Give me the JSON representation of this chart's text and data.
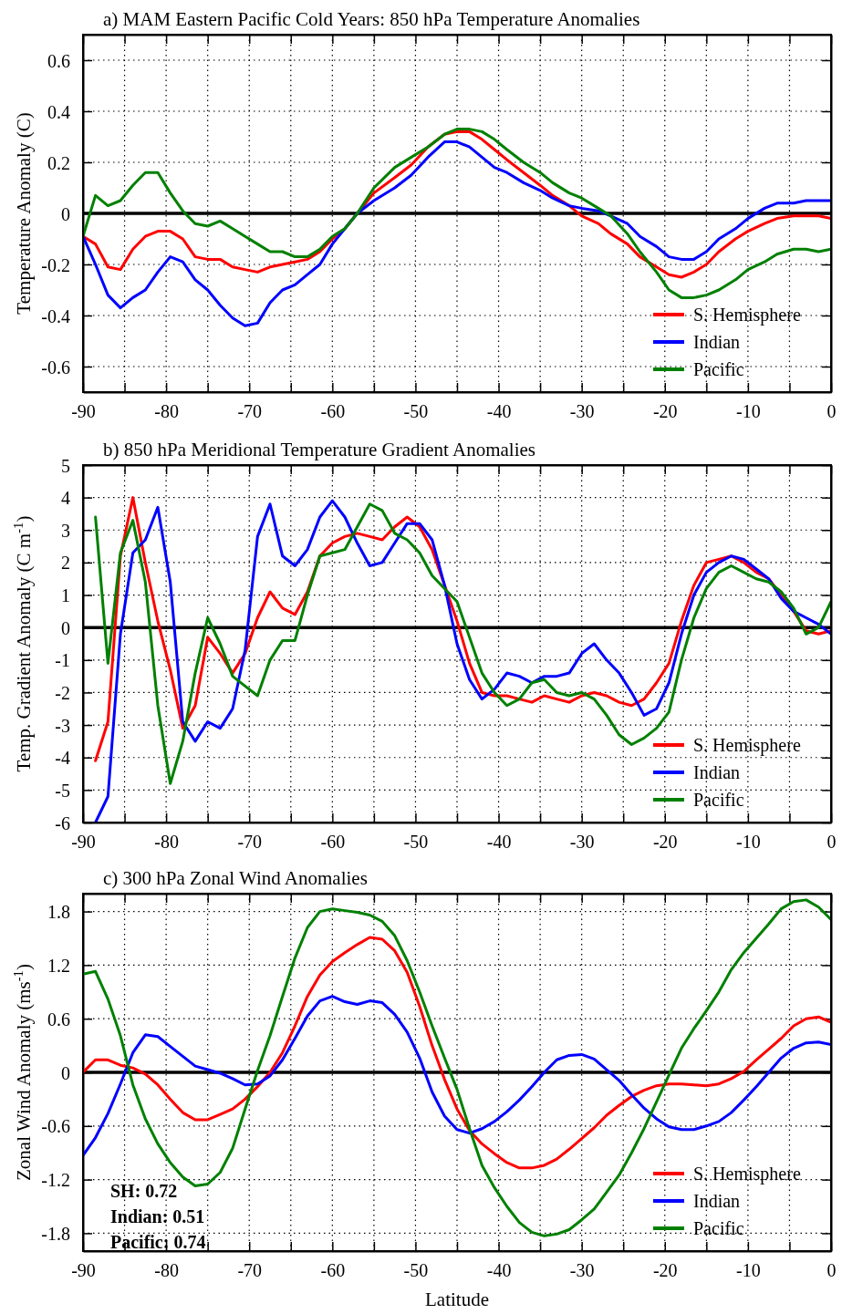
{
  "chart_data": [
    {
      "type": "line",
      "title": "a) MAM Eastern Pacific Cold Years: 850 hPa Temperature Anomalies",
      "ylabel": "Temperature Anomaly (C)",
      "x": [
        -90,
        -88.5,
        -87,
        -85.5,
        -84,
        -82.5,
        -81,
        -79.5,
        -78,
        -76.5,
        -75,
        -73.5,
        -72,
        -70.5,
        -69,
        -67.5,
        -66,
        -64.5,
        -63,
        -61.5,
        -60,
        -58.5,
        -57,
        -55,
        -52.5,
        -50.5,
        -48.5,
        -46.5,
        -45,
        -43.5,
        -42,
        -40.5,
        -39,
        -37,
        -35,
        -33.5,
        -31.5,
        -30,
        -28,
        -26.5,
        -24.5,
        -23,
        -21,
        -19.5,
        -18,
        -16.5,
        -15,
        -13.5,
        -11.5,
        -10,
        -8,
        -6.5,
        -4.5,
        -3,
        -1.5,
        0
      ],
      "series": [
        {
          "name": "S. Hemisphere",
          "color": "#ff0000",
          "values": [
            -0.09,
            -0.12,
            -0.21,
            -0.22,
            -0.14,
            -0.09,
            -0.07,
            -0.07,
            -0.1,
            -0.17,
            -0.18,
            -0.18,
            -0.21,
            -0.22,
            -0.23,
            -0.21,
            -0.2,
            -0.19,
            -0.18,
            -0.15,
            -0.1,
            -0.06,
            0,
            0.08,
            0.14,
            0.19,
            0.26,
            0.31,
            0.32,
            0.32,
            0.29,
            0.25,
            0.21,
            0.16,
            0.11,
            0.07,
            0.03,
            -0.01,
            -0.04,
            -0.08,
            -0.12,
            -0.17,
            -0.21,
            -0.24,
            -0.25,
            -0.23,
            -0.2,
            -0.15,
            -0.1,
            -0.07,
            -0.04,
            -0.02,
            -0.01,
            -0.01,
            -0.01,
            -0.02
          ]
        },
        {
          "name": "Indian",
          "color": "#0000ff",
          "values": [
            -0.09,
            -0.2,
            -0.32,
            -0.37,
            -0.33,
            -0.3,
            -0.23,
            -0.17,
            -0.19,
            -0.26,
            -0.3,
            -0.36,
            -0.41,
            -0.44,
            -0.43,
            -0.35,
            -0.3,
            -0.28,
            -0.24,
            -0.2,
            -0.12,
            -0.06,
            0,
            0.05,
            0.1,
            0.15,
            0.22,
            0.28,
            0.28,
            0.26,
            0.22,
            0.18,
            0.16,
            0.12,
            0.09,
            0.06,
            0.03,
            0.02,
            0.01,
            -0.01,
            -0.04,
            -0.09,
            -0.13,
            -0.17,
            -0.18,
            -0.18,
            -0.15,
            -0.1,
            -0.06,
            -0.02,
            0.02,
            0.04,
            0.04,
            0.05,
            0.05,
            0.05
          ]
        },
        {
          "name": "Pacific",
          "color": "#008000",
          "values": [
            -0.09,
            0.07,
            0.03,
            0.05,
            0.11,
            0.16,
            0.16,
            0.08,
            0.01,
            -0.04,
            -0.05,
            -0.03,
            -0.06,
            -0.09,
            -0.12,
            -0.15,
            -0.15,
            -0.17,
            -0.17,
            -0.14,
            -0.09,
            -0.06,
            0,
            0.1,
            0.18,
            0.22,
            0.26,
            0.31,
            0.33,
            0.33,
            0.32,
            0.29,
            0.25,
            0.2,
            0.16,
            0.12,
            0.08,
            0.06,
            0.02,
            -0.01,
            -0.08,
            -0.15,
            -0.23,
            -0.3,
            -0.33,
            -0.33,
            -0.32,
            -0.3,
            -0.26,
            -0.22,
            -0.19,
            -0.16,
            -0.14,
            -0.14,
            -0.15,
            -0.14
          ]
        }
      ],
      "xlim": [
        -90,
        0
      ],
      "ylim": [
        -0.7,
        0.7
      ],
      "xticks": [
        -90,
        {
          "value": -85,
          "label": null
        },
        -80,
        {
          "value": -75,
          "label": null
        },
        -70,
        {
          "value": -65,
          "label": null
        },
        -60,
        {
          "value": -55,
          "label": null
        },
        -50,
        {
          "value": -45,
          "label": null
        },
        -40,
        {
          "value": -35,
          "label": null
        },
        -30,
        {
          "value": -25,
          "label": null
        },
        -20,
        {
          "value": -15,
          "label": null
        },
        -10,
        {
          "value": -5,
          "label": null
        },
        0
      ],
      "yticks": [
        -0.6,
        -0.4,
        -0.2,
        0,
        0.2,
        0.4,
        0.6
      ],
      "grid": true,
      "legend": "bottom right",
      "ref_lines": [
        {
          "axis": "y",
          "value": 0,
          "color": "#000000"
        }
      ]
    },
    {
      "type": "line",
      "title": "b) 850 hPa Meridional Temperature Gradient Anomalies",
      "ylabel": "Temp. Gradient Anomaly (C m$^{-1}$)",
      "x": [
        -88.5,
        -87,
        -85.5,
        -84,
        -82.5,
        -81,
        -79.5,
        -78,
        -76.5,
        -75,
        -73.5,
        -72,
        -70.5,
        -69,
        -67.5,
        -66,
        -64.5,
        -63,
        -61.5,
        -60,
        -58.5,
        -57,
        -55.5,
        -54,
        -52.5,
        -51,
        -49.5,
        -48,
        -46.5,
        -45,
        -43.5,
        -42,
        -40.5,
        -39,
        -37.5,
        -36,
        -34.5,
        -33,
        -31.5,
        -30,
        -28.5,
        -27,
        -25.5,
        -24,
        -22.5,
        -21,
        -19.5,
        -18,
        -16.5,
        -15,
        -13.5,
        -12,
        -10.5,
        -9,
        -7.5,
        -6,
        -4.5,
        -3,
        -1.5,
        0
      ],
      "series": [
        {
          "name": "S. Hemisphere",
          "color": "#ff0000",
          "values": [
            -4.1,
            -2.9,
            2.2,
            4.0,
            2.0,
            0.2,
            -1.3,
            -3.1,
            -2.4,
            -0.3,
            -0.8,
            -1.4,
            -0.8,
            0.3,
            1.1,
            0.6,
            0.4,
            1.1,
            2.2,
            2.6,
            2.8,
            2.9,
            2.8,
            2.7,
            3.1,
            3.4,
            3.1,
            2.4,
            1.3,
            0.2,
            -1.1,
            -2.0,
            -2.1,
            -2.1,
            -2.2,
            -2.3,
            -2.1,
            -2.2,
            -2.3,
            -2.1,
            -2.0,
            -2.1,
            -2.3,
            -2.4,
            -2.2,
            -1.7,
            -1.1,
            0.2,
            1.3,
            2.0,
            2.1,
            2.2,
            2.0,
            1.7,
            1.5,
            1.0,
            0.5,
            -0.1,
            -0.2,
            -0.1
          ]
        },
        {
          "name": "Indian",
          "color": "#0000ff",
          "values": [
            -6.0,
            -5.2,
            -0.2,
            2.3,
            2.7,
            3.7,
            1.4,
            -2.9,
            -3.5,
            -2.9,
            -3.1,
            -2.5,
            -0.7,
            2.8,
            3.8,
            2.2,
            1.9,
            2.4,
            3.4,
            3.9,
            3.4,
            2.6,
            1.9,
            2.0,
            2.6,
            3.2,
            3.2,
            2.7,
            1.3,
            -0.5,
            -1.6,
            -2.2,
            -1.9,
            -1.4,
            -1.5,
            -1.7,
            -1.5,
            -1.5,
            -1.4,
            -0.8,
            -0.5,
            -1.0,
            -1.4,
            -2.0,
            -2.7,
            -2.5,
            -1.7,
            -0.2,
            1.0,
            1.7,
            2.0,
            2.2,
            2.1,
            1.8,
            1.5,
            0.9,
            0.5,
            0.3,
            0.1,
            -0.2
          ]
        },
        {
          "name": "Pacific",
          "color": "#008000",
          "values": [
            3.4,
            -1.1,
            2.3,
            3.3,
            1.4,
            -2.4,
            -4.8,
            -3.5,
            -1.4,
            0.3,
            -0.5,
            -1.5,
            -1.8,
            -2.1,
            -1.0,
            -0.4,
            -0.4,
            1.0,
            2.2,
            2.3,
            2.4,
            3.1,
            3.8,
            3.6,
            2.9,
            2.7,
            2.3,
            1.6,
            1.2,
            0.8,
            -0.3,
            -1.4,
            -2.0,
            -2.4,
            -2.2,
            -1.7,
            -1.6,
            -2.0,
            -2.1,
            -2.0,
            -2.2,
            -2.7,
            -3.3,
            -3.6,
            -3.4,
            -3.1,
            -2.6,
            -1.0,
            0.3,
            1.2,
            1.7,
            1.9,
            1.7,
            1.5,
            1.4,
            1.1,
            0.6,
            -0.2,
            0.0,
            0.8
          ]
        }
      ],
      "xlim": [
        -90,
        0
      ],
      "ylim": [
        -6,
        5
      ],
      "xticks": [
        -90,
        {
          "value": -85,
          "label": null
        },
        -80,
        {
          "value": -75,
          "label": null
        },
        -70,
        {
          "value": -65,
          "label": null
        },
        -60,
        {
          "value": -55,
          "label": null
        },
        -50,
        {
          "value": -45,
          "label": null
        },
        -40,
        {
          "value": -35,
          "label": null
        },
        -30,
        {
          "value": -25,
          "label": null
        },
        -20,
        {
          "value": -15,
          "label": null
        },
        -10,
        {
          "value": -5,
          "label": null
        },
        0
      ],
      "yticks": [
        -6,
        -5,
        -4,
        -3,
        -2,
        -1,
        0,
        1,
        2,
        3,
        4,
        5
      ],
      "grid": true,
      "legend": "bottom right",
      "ref_lines": [
        {
          "axis": "y",
          "value": 0,
          "color": "#000000"
        }
      ]
    },
    {
      "type": "line",
      "title": "c) 300 hPa Zonal Wind Anomalies",
      "xlabel": "Latitude",
      "ylabel": "Zonal Wind Anomaly (ms$^{-1}$)",
      "x": [
        -90,
        -88.5,
        -87,
        -85.5,
        -84,
        -82.5,
        -81,
        -79.5,
        -78,
        -76.5,
        -75,
        -73.5,
        -72,
        -70.5,
        -69,
        -67.5,
        -66,
        -64.5,
        -63,
        -61.5,
        -60,
        -58.5,
        -57,
        -55.5,
        -54,
        -52.5,
        -51,
        -49.5,
        -48,
        -46.5,
        -45,
        -43.5,
        -42,
        -40.5,
        -39,
        -37.5,
        -36,
        -34.5,
        -33,
        -31.5,
        -30,
        -28.5,
        -27,
        -25.5,
        -24,
        -22.5,
        -21,
        -19.5,
        -18,
        -16.5,
        -15,
        -13.5,
        -12,
        -10.5,
        -9,
        -7.5,
        -6,
        -4.5,
        -3,
        -1.5,
        0
      ],
      "series": [
        {
          "name": "S. Hemisphere",
          "color": "#ff0000",
          "values": [
            0,
            0.14,
            0.14,
            0.08,
            0.05,
            -0.02,
            -0.14,
            -0.3,
            -0.45,
            -0.53,
            -0.53,
            -0.47,
            -0.41,
            -0.3,
            -0.16,
            0,
            0.22,
            0.52,
            0.85,
            1.09,
            1.24,
            1.34,
            1.43,
            1.51,
            1.49,
            1.36,
            1.12,
            0.74,
            0.3,
            -0.08,
            -0.41,
            -0.65,
            -0.8,
            -0.91,
            -1.01,
            -1.07,
            -1.07,
            -1.04,
            -0.97,
            -0.86,
            -0.74,
            -0.62,
            -0.48,
            -0.37,
            -0.27,
            -0.2,
            -0.15,
            -0.13,
            -0.13,
            -0.14,
            -0.15,
            -0.13,
            -0.07,
            0.01,
            0.14,
            0.26,
            0.38,
            0.52,
            0.6,
            0.62,
            0.56
          ]
        },
        {
          "name": "Indian",
          "color": "#0000ff",
          "values": [
            -0.93,
            -0.73,
            -0.46,
            -0.13,
            0.22,
            0.42,
            0.4,
            0.29,
            0.18,
            0.07,
            0.03,
            -0.01,
            -0.07,
            -0.14,
            -0.13,
            -0.04,
            0.14,
            0.38,
            0.63,
            0.8,
            0.85,
            0.79,
            0.76,
            0.8,
            0.78,
            0.65,
            0.45,
            0.16,
            -0.22,
            -0.49,
            -0.64,
            -0.68,
            -0.63,
            -0.55,
            -0.44,
            -0.31,
            -0.16,
            0,
            0.14,
            0.19,
            0.2,
            0.15,
            0.03,
            -0.09,
            -0.25,
            -0.4,
            -0.52,
            -0.61,
            -0.64,
            -0.64,
            -0.6,
            -0.55,
            -0.45,
            -0.31,
            -0.16,
            0,
            0.16,
            0.27,
            0.33,
            0.34,
            0.31
          ]
        },
        {
          "name": "Pacific",
          "color": "#008000",
          "values": [
            1.1,
            1.13,
            0.82,
            0.41,
            -0.14,
            -0.52,
            -0.8,
            -1.01,
            -1.17,
            -1.27,
            -1.25,
            -1.12,
            -0.85,
            -0.41,
            0.02,
            0.41,
            0.85,
            1.28,
            1.62,
            1.8,
            1.83,
            1.81,
            1.79,
            1.76,
            1.69,
            1.53,
            1.25,
            0.9,
            0.52,
            0.16,
            -0.19,
            -0.63,
            -1.04,
            -1.29,
            -1.5,
            -1.68,
            -1.79,
            -1.83,
            -1.81,
            -1.76,
            -1.65,
            -1.53,
            -1.34,
            -1.15,
            -0.9,
            -0.63,
            -0.33,
            -0.03,
            0.27,
            0.49,
            0.69,
            0.9,
            1.15,
            1.34,
            1.5,
            1.66,
            1.83,
            1.91,
            1.93,
            1.85,
            1.71
          ]
        }
      ],
      "xlim": [
        -90,
        0
      ],
      "ylim": [
        -2,
        2
      ],
      "xticks": [
        -90,
        {
          "value": -85,
          "label": null
        },
        -80,
        {
          "value": -75,
          "label": null
        },
        -70,
        {
          "value": -65,
          "label": null
        },
        -60,
        {
          "value": -55,
          "label": null
        },
        -50,
        {
          "value": -45,
          "label": null
        },
        -40,
        {
          "value": -35,
          "label": null
        },
        -30,
        {
          "value": -25,
          "label": null
        },
        -20,
        {
          "value": -15,
          "label": null
        },
        -10,
        {
          "value": -5,
          "label": null
        },
        0
      ],
      "yticks": [
        -1.8,
        -1.2,
        -0.6,
        0,
        0.6,
        1.2,
        1.8
      ],
      "grid": true,
      "legend": "bottom right",
      "ref_lines": [
        {
          "axis": "y",
          "value": 0,
          "color": "#000000"
        }
      ],
      "annotations": [
        "SH: 0.72",
        "Indian: 0.51",
        "Pacific: 0.74"
      ]
    }
  ]
}
